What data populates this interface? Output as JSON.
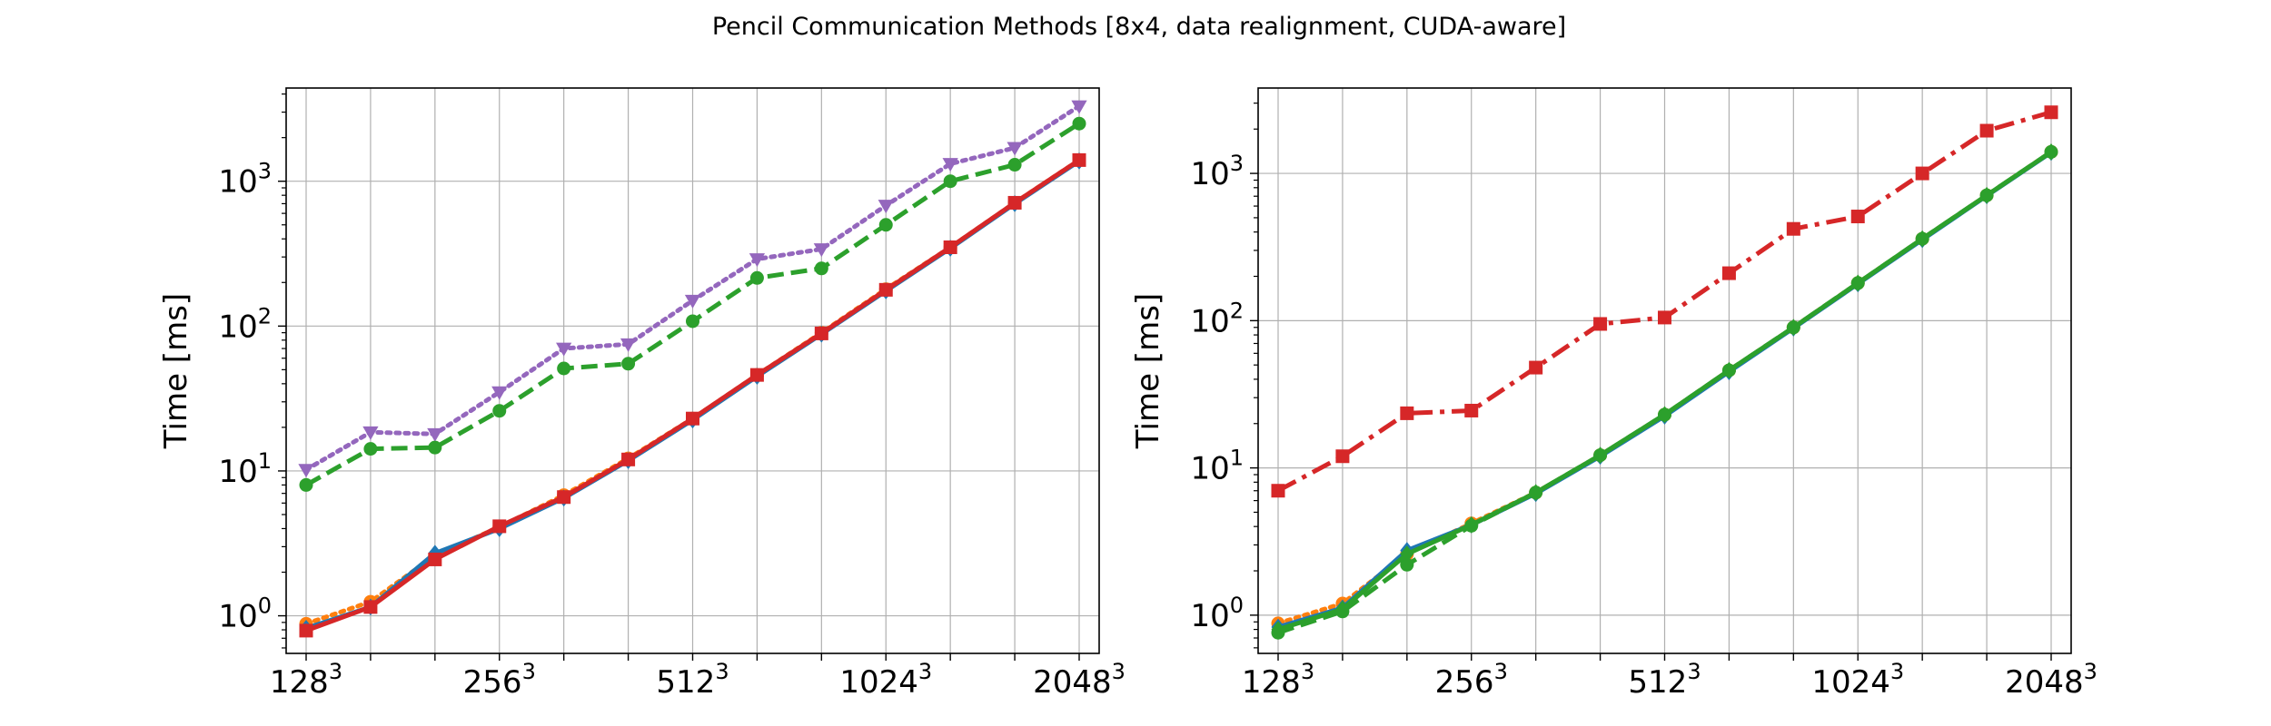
{
  "title": "Pencil Communication Methods [8x4, data realignment, CUDA-aware]",
  "chart_data": [
    {
      "type": "line",
      "ylabel": "Time [ms]",
      "xlabel": "",
      "yscale": "log",
      "ylim": [
        0.55,
        4400
      ],
      "grid": true,
      "x_count": 13,
      "x_ticks": [
        {
          "index": 0,
          "base": "128",
          "exp": "3"
        },
        {
          "index": 3,
          "base": "256",
          "exp": "3"
        },
        {
          "index": 6,
          "base": "512",
          "exp": "3"
        },
        {
          "index": 9,
          "base": "1024",
          "exp": "3"
        },
        {
          "index": 12,
          "base": "2048",
          "exp": "3"
        }
      ],
      "y_ticks": [
        {
          "value": 1,
          "base": "10",
          "exp": "0"
        },
        {
          "value": 10,
          "base": "10",
          "exp": "1"
        },
        {
          "value": 100,
          "base": "10",
          "exp": "2"
        },
        {
          "value": 1000,
          "base": "10",
          "exp": "3"
        }
      ],
      "series": [
        {
          "name": "purple",
          "color": "#9467bd",
          "dash": "dotted",
          "marker": "triangle-down",
          "values": [
            10.2,
            18.5,
            18.0,
            35,
            70,
            75,
            150,
            290,
            340,
            680,
            1320,
            1700,
            3300
          ]
        },
        {
          "name": "green",
          "color": "#2ca02c",
          "dash": "dashed",
          "marker": "circle",
          "values": [
            8.0,
            14.2,
            14.5,
            26,
            51,
            55,
            108,
            215,
            250,
            500,
            1000,
            1300,
            2500
          ]
        },
        {
          "name": "orange",
          "color": "#ff7f0e",
          "dash": "dotted",
          "marker": "circle",
          "values": [
            0.88,
            1.25,
            2.6,
            4.1,
            6.8,
            12.2,
            23,
            46,
            90,
            180,
            350,
            710,
            1400
          ]
        },
        {
          "name": "blue",
          "color": "#1f77b4",
          "dash": "solid",
          "marker": "diamond",
          "values": [
            0.82,
            1.15,
            2.7,
            4.0,
            6.5,
            11.8,
            22.5,
            45,
            88,
            175,
            345,
            700,
            1380
          ]
        },
        {
          "name": "red",
          "color": "#d62728",
          "dash": "solid",
          "marker": "square",
          "values": [
            0.79,
            1.15,
            2.45,
            4.15,
            6.6,
            12.0,
            23,
            46,
            89,
            178,
            350,
            710,
            1400
          ]
        }
      ]
    },
    {
      "type": "line",
      "ylabel": "Time [ms]",
      "xlabel": "",
      "yscale": "log",
      "ylim": [
        0.55,
        3800
      ],
      "grid": true,
      "x_count": 13,
      "x_ticks": [
        {
          "index": 0,
          "base": "128",
          "exp": "3"
        },
        {
          "index": 3,
          "base": "256",
          "exp": "3"
        },
        {
          "index": 6,
          "base": "512",
          "exp": "3"
        },
        {
          "index": 9,
          "base": "1024",
          "exp": "3"
        },
        {
          "index": 12,
          "base": "2048",
          "exp": "3"
        }
      ],
      "y_ticks": [
        {
          "value": 1,
          "base": "10",
          "exp": "0"
        },
        {
          "value": 10,
          "base": "10",
          "exp": "1"
        },
        {
          "value": 100,
          "base": "10",
          "exp": "2"
        },
        {
          "value": 1000,
          "base": "10",
          "exp": "3"
        }
      ],
      "series": [
        {
          "name": "red",
          "color": "#d62728",
          "dash": "dashdot",
          "marker": "square",
          "values": [
            7.0,
            12.0,
            23.5,
            24.5,
            48,
            95,
            105,
            210,
            420,
            510,
            1000,
            1950,
            2600
          ]
        },
        {
          "name": "orange",
          "color": "#ff7f0e",
          "dash": "dotted",
          "marker": "circle",
          "values": [
            0.88,
            1.2,
            2.6,
            4.2,
            6.8,
            12.2,
            23,
            46,
            90,
            180,
            360,
            710,
            1400
          ]
        },
        {
          "name": "blue",
          "color": "#1f77b4",
          "dash": "solid",
          "marker": "diamond",
          "values": [
            0.83,
            1.12,
            2.75,
            4.1,
            6.7,
            12.0,
            22.5,
            45,
            89,
            178,
            355,
            705,
            1390
          ]
        },
        {
          "name": "green",
          "color": "#2ca02c",
          "dash": "dashed",
          "marker": "circle",
          "values": [
            0.76,
            1.06,
            2.2,
            4.05,
            6.8,
            12.2,
            23,
            46,
            90,
            180,
            360,
            710,
            1400
          ]
        },
        {
          "name": "green-diamond",
          "color": "#2ca02c",
          "dash": "solid",
          "marker": "diamond",
          "values": [
            0.8,
            1.1,
            2.6,
            4.1,
            6.8,
            12.2,
            23,
            46,
            90,
            180,
            360,
            710,
            1400
          ]
        }
      ]
    }
  ]
}
